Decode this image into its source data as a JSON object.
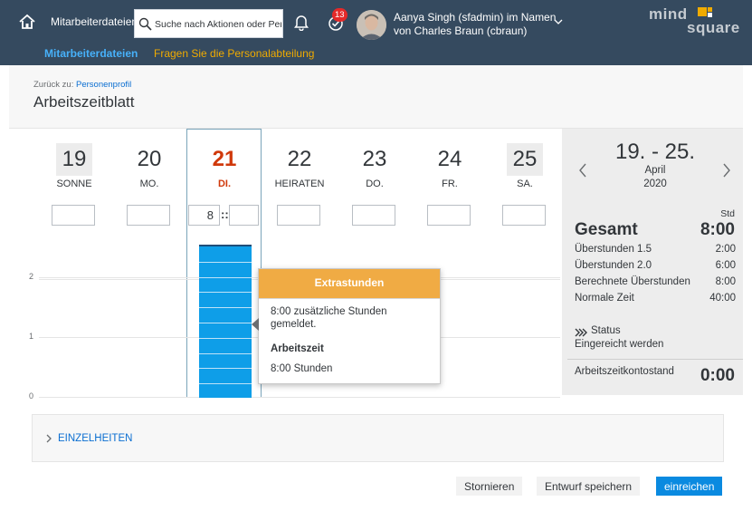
{
  "shell": {
    "app_title": "Mitarbeiterdateien",
    "search_placeholder": "Suche nach Aktionen oder Per...",
    "notification_count": "13",
    "user_line1": "Aanya Singh (sfadmin) im Namen",
    "user_line2": "von Charles Braun (cbraun)",
    "logo_line1": "mind",
    "logo_line2": "square",
    "brand_accent": "#f0ab00",
    "header_color": "#354a5f"
  },
  "nav": {
    "tab1": "Mitarbeiterdateien",
    "tab2": "Fragen Sie die Personalabteilung"
  },
  "page": {
    "back_prefix": "Zurück zu:",
    "back_link": "Personenprofil",
    "title": "Arbeitszeitblatt"
  },
  "days": [
    {
      "num": "19",
      "name": "SONNE",
      "hours": ""
    },
    {
      "num": "20",
      "name": "MO.",
      "hours": ""
    },
    {
      "num": "21",
      "name": "DI.",
      "hours": "8"
    },
    {
      "num": "22",
      "name": "HEIRATEN",
      "hours": ""
    },
    {
      "num": "23",
      "name": "DO.",
      "hours": ""
    },
    {
      "num": "24",
      "name": "FR.",
      "hours": ""
    },
    {
      "num": "25",
      "name": "SA.",
      "hours": ""
    }
  ],
  "time_separator": "::",
  "chart_data": {
    "type": "bar",
    "categories": [
      "19",
      "20",
      "21",
      "22",
      "23",
      "24",
      "25"
    ],
    "values": [
      0,
      0,
      2.5,
      0,
      0,
      0,
      0
    ],
    "yticks": [
      "0",
      "1",
      "2"
    ],
    "ylim": [
      0,
      2.5
    ]
  },
  "popover": {
    "title": "Extrastunden",
    "text": "8:00 zusätzliche Stunden gemeldet.",
    "subtitle": "Arbeitszeit",
    "value": "8:00 Stunden"
  },
  "summary": {
    "range": "19. - 25.",
    "month": "April",
    "year": "2020",
    "unit": "Std",
    "total_label": "Gesamt",
    "total_value": "8:00",
    "rows": [
      {
        "label": "Überstunden 1.5",
        "value": "2:00"
      },
      {
        "label": "Überstunden 2.0",
        "value": "6:00"
      },
      {
        "label": "Berechnete Überstunden",
        "value": "8:00"
      },
      {
        "label": "Normale Zeit",
        "value": "40:00"
      }
    ],
    "status_label": "Status",
    "status_value": "Eingereicht werden",
    "balance_label": "Arbeitszeitkontostand",
    "balance_value": "0:00"
  },
  "details": {
    "label": "EINZELHEITEN"
  },
  "buttons": {
    "cancel": "Stornieren",
    "save_draft": "Entwurf speichern",
    "submit": "einreichen"
  }
}
